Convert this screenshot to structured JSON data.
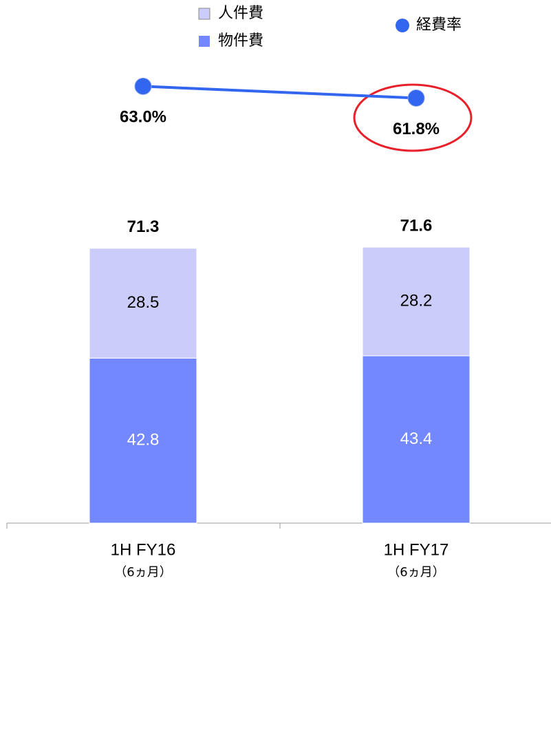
{
  "chart_data": {
    "type": "bar",
    "categories": [
      "1H FY16",
      "1H FY17"
    ],
    "category_sublabels": [
      "（6ヵ月）",
      "（6ヵ月）"
    ],
    "series": [
      {
        "name": "物件費",
        "color": "#7388ff",
        "values": [
          42.8,
          43.4
        ]
      },
      {
        "name": "人件費",
        "color": "#ccccfa",
        "values": [
          28.5,
          28.2
        ]
      }
    ],
    "totals": [
      71.3,
      71.6
    ],
    "line": {
      "type": "line",
      "name": "経費率",
      "color": "#3366ee",
      "axis": "y2",
      "values": [
        63.0,
        61.8
      ],
      "value_labels": [
        "63.0%",
        "61.8%"
      ]
    },
    "ylim": [
      0,
      80
    ],
    "y2lim": [
      60,
      65
    ]
  }
}
